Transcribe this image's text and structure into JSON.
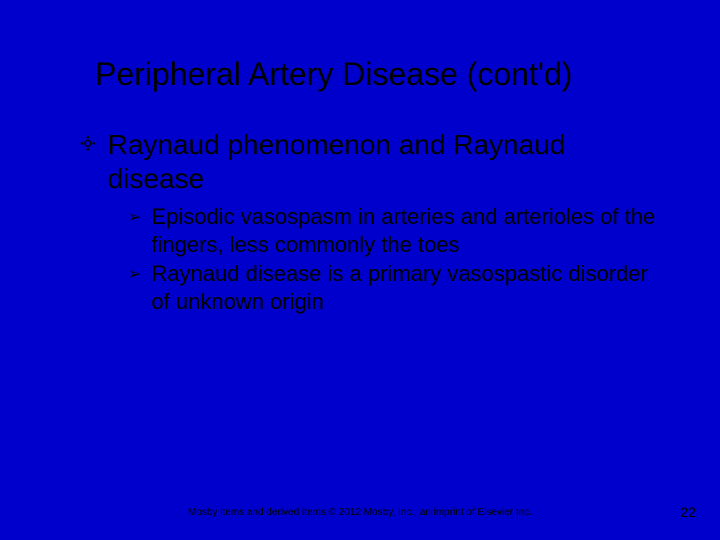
{
  "slide": {
    "background_color": "#0000cc",
    "text_color": "#000000",
    "title": "Peripheral Artery Disease (cont'd)",
    "title_fontsize": 32,
    "bullets": [
      {
        "marker": "༓",
        "text": "Raynaud phenomenon and Raynaud disease",
        "fontsize": 28,
        "children": [
          {
            "marker": "➢",
            "text": "Episodic vasospasm in arteries and arterioles of the fingers, less commonly the toes",
            "fontsize": 22
          },
          {
            "marker": "➢",
            "text": "Raynaud disease is a primary vasospastic disorder of unknown origin",
            "fontsize": 22
          }
        ]
      }
    ],
    "footer": "Mosby items and derived items © 2012 Mosby, Inc., an imprint of Elsevier Inc.",
    "footer_fontsize": 10,
    "page_number": "22",
    "page_number_fontsize": 14
  }
}
